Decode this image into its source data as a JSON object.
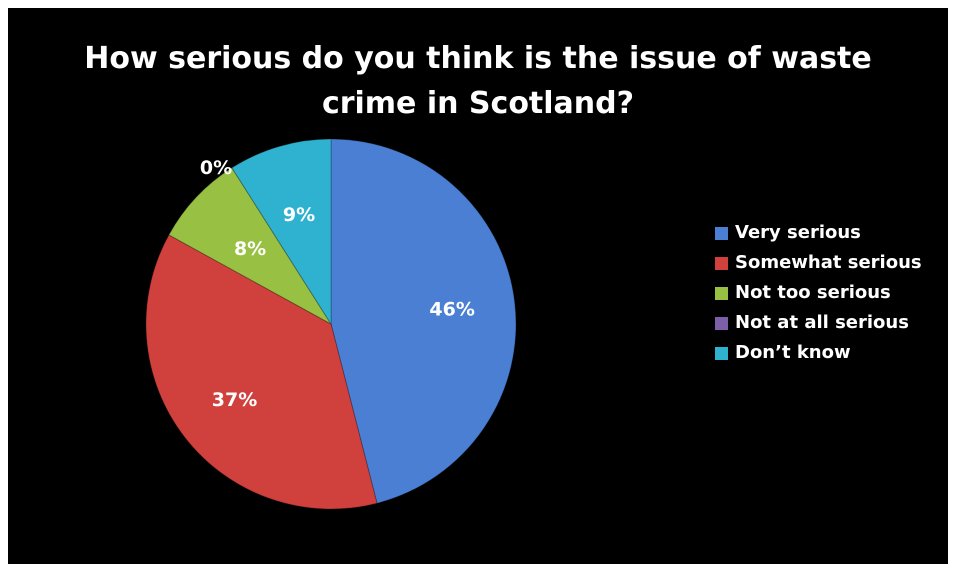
{
  "chart_data": {
    "type": "pie",
    "title": "How serious do you think is the issue of waste crime in Scotland?",
    "title_lines": [
      "How serious do you think is the issue of waste",
      "crime in Scotland?"
    ],
    "categories": [
      "Very serious",
      "Somewhat serious",
      "Not too serious",
      "Not at all serious",
      "Don’t know"
    ],
    "values": [
      46,
      37,
      8,
      0,
      9
    ],
    "labels": [
      "46%",
      "37%",
      "8%",
      "0%",
      "9%"
    ],
    "colors": [
      "#4a7fd4",
      "#d0413e",
      "#98c042",
      "#7d5fa8",
      "#2fb2cf"
    ],
    "legend_position": "right"
  }
}
